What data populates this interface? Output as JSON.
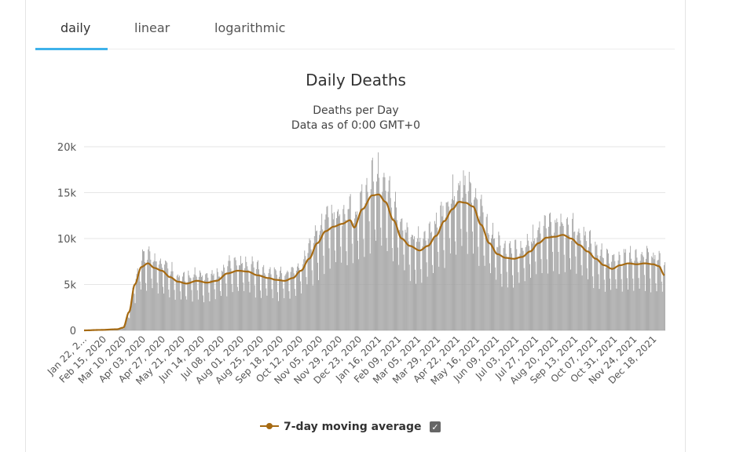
{
  "tabs": [
    {
      "label": "daily",
      "active": true
    },
    {
      "label": "linear",
      "active": false
    },
    {
      "label": "logarithmic",
      "active": false
    }
  ],
  "colors": {
    "accent": "#3eb2ea",
    "bar": "#a3a3a3",
    "moving_average": "#a66a12",
    "grid": "#e6e6e6"
  },
  "chart_data": {
    "type": "bar",
    "title": "Daily Deaths",
    "subtitle_line1": "Deaths per Day",
    "subtitle_line2": "Data as of 0:00 GMT+0",
    "ylim": [
      0,
      20000
    ],
    "yticks": [
      0,
      5000,
      10000,
      15000,
      20000
    ],
    "ytick_labels": [
      "0",
      "5k",
      "10k",
      "15k",
      "20k"
    ],
    "x_tick_labels": [
      "Jan 22, 2...",
      "Feb 15, 2020",
      "Mar 10, 2020",
      "Apr 03, 2020",
      "Apr 27, 2020",
      "May 21, 2020",
      "Jun 14, 2020",
      "Jul 08, 2020",
      "Aug 01, 2020",
      "Aug 25, 2020",
      "Sep 18, 2020",
      "Oct 12, 2020",
      "Nov 05, 2020",
      "Nov 29, 2020",
      "Dec 23, 2020",
      "Jan 16, 2021",
      "Feb 09, 2021",
      "Mar 05, 2021",
      "Mar 29, 2021",
      "Apr 22, 2021",
      "May 16, 2021",
      "Jun 09, 2021",
      "Jul 03, 2021",
      "Jul 27, 2021",
      "Aug 20, 2021",
      "Sep 13, 2021",
      "Oct 07, 2021",
      "Oct 31, 2021",
      "Nov 24, 2021",
      "Dec 18, 2021"
    ],
    "start_date": "Jan 22, 2020",
    "interval_days": 24,
    "total_days": 710,
    "moving_average_anchors": [
      [
        0,
        0
      ],
      [
        20,
        50
      ],
      [
        40,
        120
      ],
      [
        48,
        300
      ],
      [
        55,
        2000
      ],
      [
        62,
        5000
      ],
      [
        70,
        6900
      ],
      [
        78,
        7300
      ],
      [
        86,
        6800
      ],
      [
        95,
        6500
      ],
      [
        105,
        5800
      ],
      [
        115,
        5300
      ],
      [
        125,
        5100
      ],
      [
        138,
        5400
      ],
      [
        150,
        5200
      ],
      [
        162,
        5400
      ],
      [
        175,
        6200
      ],
      [
        188,
        6500
      ],
      [
        200,
        6400
      ],
      [
        212,
        6000
      ],
      [
        225,
        5700
      ],
      [
        235,
        5500
      ],
      [
        245,
        5400
      ],
      [
        255,
        5700
      ],
      [
        265,
        6500
      ],
      [
        275,
        7800
      ],
      [
        285,
        9500
      ],
      [
        295,
        10800
      ],
      [
        305,
        11300
      ],
      [
        315,
        11600
      ],
      [
        325,
        12000
      ],
      [
        330,
        11200
      ],
      [
        340,
        13200
      ],
      [
        352,
        14700
      ],
      [
        360,
        14800
      ],
      [
        368,
        14000
      ],
      [
        378,
        12000
      ],
      [
        388,
        10000
      ],
      [
        398,
        9200
      ],
      [
        410,
        8700
      ],
      [
        420,
        9200
      ],
      [
        430,
        10300
      ],
      [
        440,
        11900
      ],
      [
        450,
        13200
      ],
      [
        458,
        14000
      ],
      [
        466,
        13900
      ],
      [
        475,
        13500
      ],
      [
        485,
        11500
      ],
      [
        495,
        9500
      ],
      [
        505,
        8300
      ],
      [
        515,
        7900
      ],
      [
        525,
        7800
      ],
      [
        535,
        8000
      ],
      [
        545,
        8600
      ],
      [
        555,
        9500
      ],
      [
        565,
        10100
      ],
      [
        575,
        10200
      ],
      [
        585,
        10400
      ],
      [
        595,
        10000
      ],
      [
        605,
        9300
      ],
      [
        615,
        8600
      ],
      [
        625,
        7800
      ],
      [
        635,
        7100
      ],
      [
        645,
        6700
      ],
      [
        655,
        7100
      ],
      [
        665,
        7300
      ],
      [
        675,
        7200
      ],
      [
        685,
        7300
      ],
      [
        695,
        7200
      ],
      [
        702,
        7000
      ],
      [
        709,
        6000
      ]
    ],
    "daily_deaths_description": "Daily bars fluctuate around the moving average with weekly seasonality; peaks near 8.8k (Apr 2020), 17.4k (Jan 2021), 15.8k (Apr 2021), 11.8k (Aug 2021)",
    "legend": [
      {
        "label": "7-day moving average",
        "checked": true
      }
    ],
    "checkbox_mark": "✓"
  }
}
